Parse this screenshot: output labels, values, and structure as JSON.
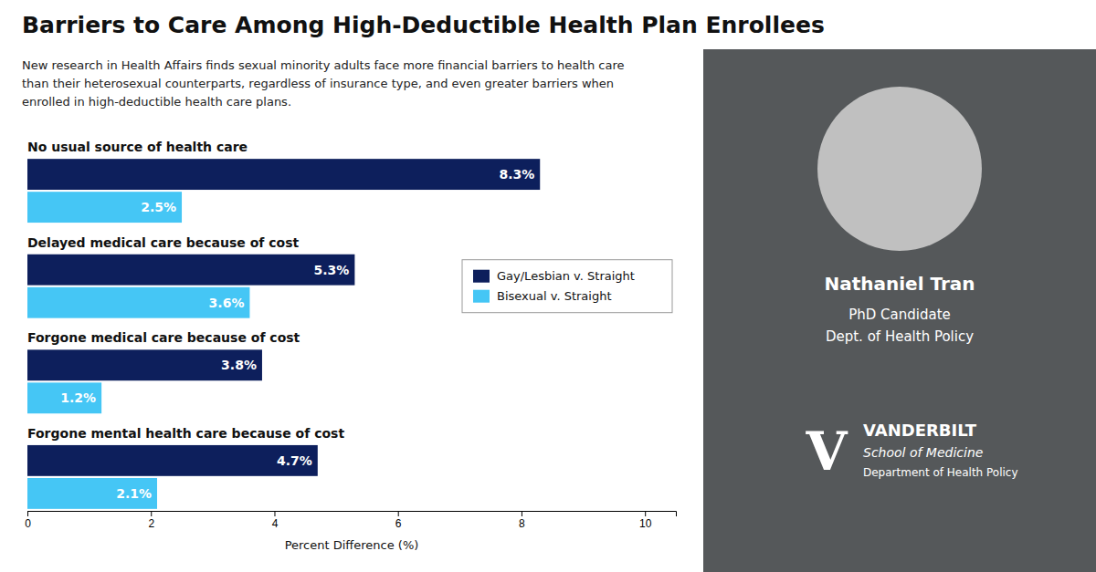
{
  "chart_data": {
    "type": "bar",
    "orientation": "horizontal",
    "title": "Barriers to Care Among High-Deductible Health Plan Enrollees",
    "subtitle": "New research in Health Affairs finds sexual minority adults face more financial barriers to health care\nthan their heterosexual counterparts, regardless of insurance type, and even greater barriers when\nenrolled in high-deductible health care plans.",
    "categories": [
      "No usual source of health care",
      "Delayed medical care because of cost",
      "Forgone medical care because of cost",
      "Forgone mental health care because of cost"
    ],
    "series": [
      {
        "name": "Gay/Lesbian v. Straight",
        "color": "#0d1f5c",
        "values": [
          8.3,
          5.3,
          3.8,
          4.7
        ],
        "value_labels": [
          "8.3%",
          "5.3%",
          "3.8%",
          "4.7%"
        ]
      },
      {
        "name": "Bisexual v. Straight",
        "color": "#45c6f5",
        "values": [
          2.5,
          3.6,
          1.2,
          2.1
        ],
        "value_labels": [
          "2.5%",
          "3.6%",
          "1.2%",
          "2.1%"
        ]
      }
    ],
    "xlabel": "Percent Difference (%)",
    "xlim": [
      0,
      10.5
    ],
    "xticks": [
      0,
      2,
      4,
      6,
      8,
      10
    ],
    "data_labels": true,
    "grid": false,
    "legend": "right",
    "annotations": [
      "Nathaniel Tran",
      "PhD Candidate",
      "Dept. of Health Policy",
      "V",
      "VANDERBILT",
      "School of Medicine",
      "Department of Health Policy"
    ]
  }
}
